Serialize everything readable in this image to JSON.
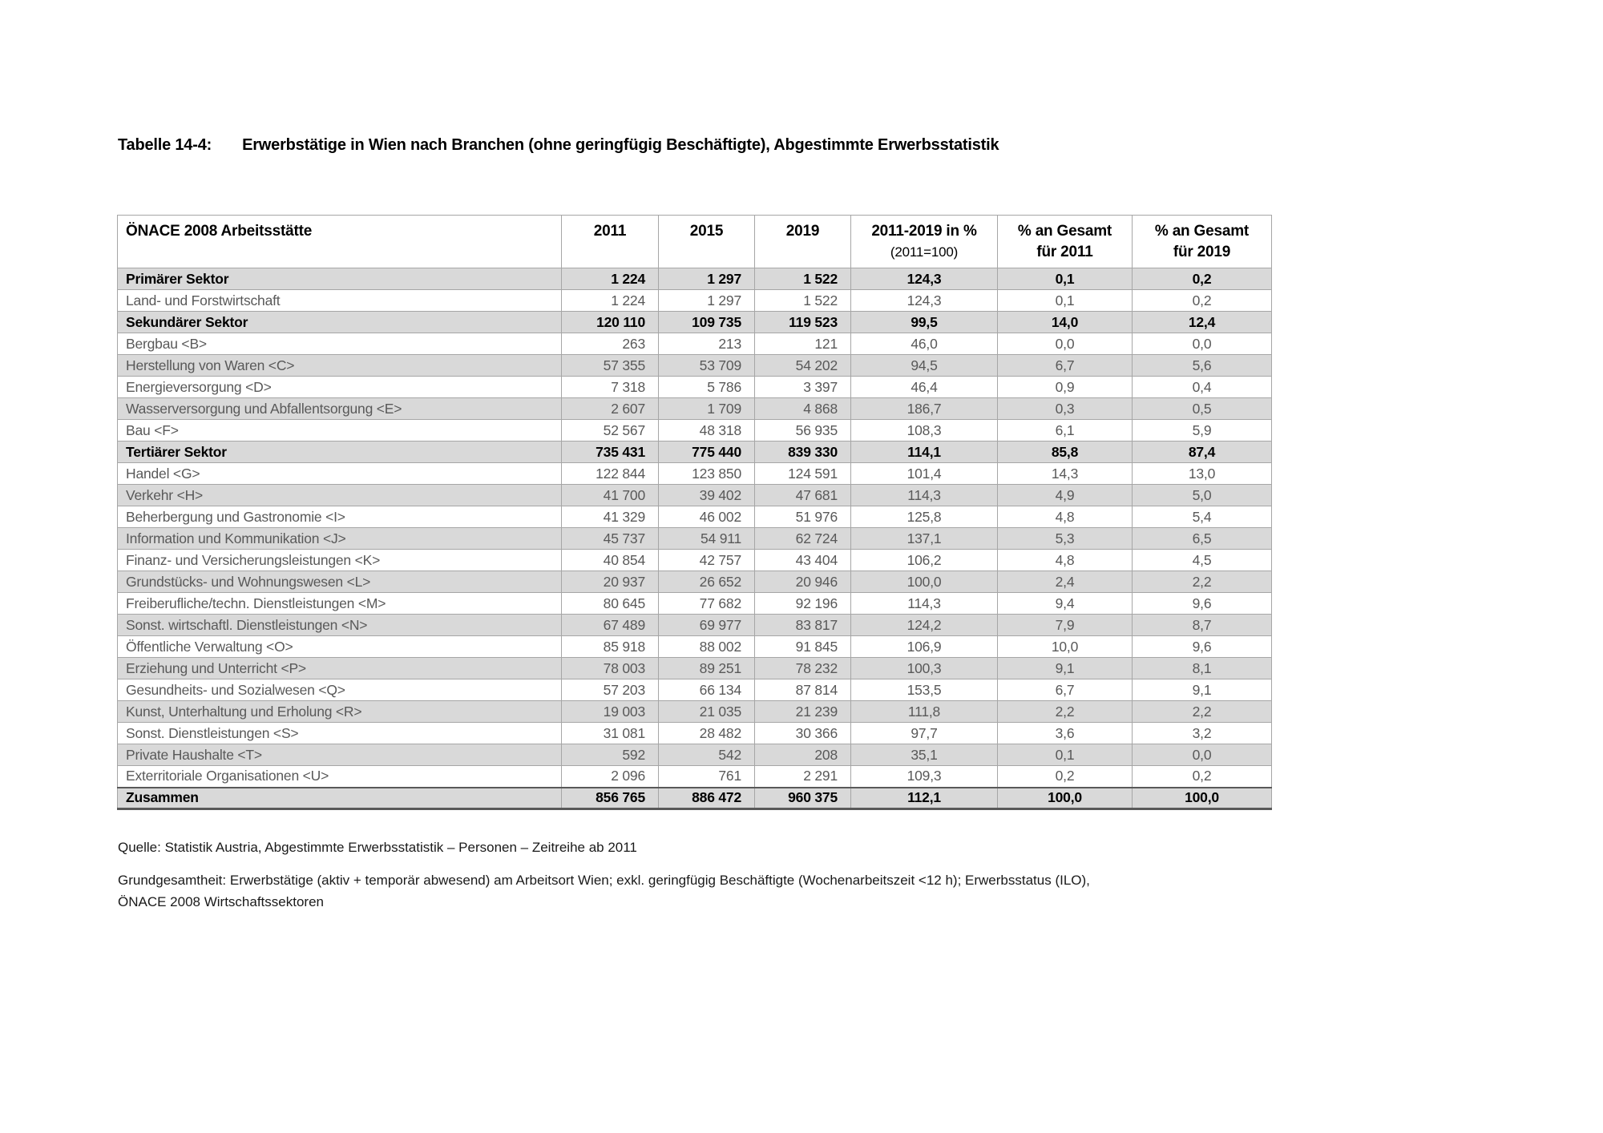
{
  "document": {
    "title": {
      "label": "Tabelle 14-4:",
      "text": "Erwerbstätige in Wien nach Branchen (ohne geringfügig Beschäftigte), Abgestimmte Erwerbsstatistik"
    },
    "source_line": "Quelle: Statistik Austria, Abgestimmte Erwerbsstatistik – Personen – Zeitreihe ab 2011",
    "note_line1": "Grundgesamtheit: Erwerbstätige (aktiv + temporär abwesend) am Arbeitsort Wien; exkl. geringfügig Beschäftigte (Wochenarbeitszeit <12 h); Erwerbsstatus (ILO),",
    "note_line2": "ÖNACE 2008 Wirtschaftssektoren"
  },
  "table": {
    "header": {
      "col_label": "ÖNACE 2008 Arbeitsstätte",
      "col_2011": "2011",
      "col_2015": "2015",
      "col_2019": "2019",
      "col_change_line1": "2011-2019 in %",
      "col_change_line2": "(2011=100)",
      "col_share2011_line1": "% an Gesamt",
      "col_share2011_line2": "für 2011",
      "col_share2019_line1": "% an Gesamt",
      "col_share2019_line2": "für 2019"
    },
    "rows": [
      {
        "label": "Primärer Sektor",
        "bold": true,
        "total": false,
        "values": [
          "1 224",
          "1 297",
          "1 522",
          "124,3",
          "0,1",
          "0,2"
        ]
      },
      {
        "label": "Land- und Forstwirtschaft",
        "bold": false,
        "total": false,
        "values": [
          "1 224",
          "1 297",
          "1 522",
          "124,3",
          "0,1",
          "0,2"
        ]
      },
      {
        "label": "Sekundärer Sektor",
        "bold": true,
        "total": false,
        "values": [
          "120 110",
          "109 735",
          "119 523",
          "99,5",
          "14,0",
          "12,4"
        ]
      },
      {
        "label": "Bergbau <B>",
        "bold": false,
        "total": false,
        "values": [
          "263",
          "213",
          "121",
          "46,0",
          "0,0",
          "0,0"
        ]
      },
      {
        "label": "Herstellung von Waren <C>",
        "bold": false,
        "total": false,
        "values": [
          "57 355",
          "53 709",
          "54 202",
          "94,5",
          "6,7",
          "5,6"
        ]
      },
      {
        "label": "Energieversorgung <D>",
        "bold": false,
        "total": false,
        "values": [
          "7 318",
          "5 786",
          "3 397",
          "46,4",
          "0,9",
          "0,4"
        ]
      },
      {
        "label": "Wasserversorgung und Abfallentsorgung <E>",
        "bold": false,
        "total": false,
        "values": [
          "2 607",
          "1 709",
          "4 868",
          "186,7",
          "0,3",
          "0,5"
        ]
      },
      {
        "label": "Bau <F>",
        "bold": false,
        "total": false,
        "values": [
          "52 567",
          "48 318",
          "56 935",
          "108,3",
          "6,1",
          "5,9"
        ]
      },
      {
        "label": "Tertiärer Sektor",
        "bold": true,
        "total": false,
        "values": [
          "735 431",
          "775 440",
          "839 330",
          "114,1",
          "85,8",
          "87,4"
        ]
      },
      {
        "label": "Handel <G>",
        "bold": false,
        "total": false,
        "values": [
          "122 844",
          "123 850",
          "124 591",
          "101,4",
          "14,3",
          "13,0"
        ]
      },
      {
        "label": "Verkehr <H>",
        "bold": false,
        "total": false,
        "values": [
          "41 700",
          "39 402",
          "47 681",
          "114,3",
          "4,9",
          "5,0"
        ]
      },
      {
        "label": "Beherbergung und Gastronomie <I>",
        "bold": false,
        "total": false,
        "values": [
          "41 329",
          "46 002",
          "51 976",
          "125,8",
          "4,8",
          "5,4"
        ]
      },
      {
        "label": "Information und Kommunikation <J>",
        "bold": false,
        "total": false,
        "values": [
          "45 737",
          "54 911",
          "62 724",
          "137,1",
          "5,3",
          "6,5"
        ]
      },
      {
        "label": "Finanz- und Versicherungsleistungen <K>",
        "bold": false,
        "total": false,
        "values": [
          "40 854",
          "42 757",
          "43 404",
          "106,2",
          "4,8",
          "4,5"
        ]
      },
      {
        "label": "Grundstücks- und Wohnungswesen <L>",
        "bold": false,
        "total": false,
        "values": [
          "20 937",
          "26 652",
          "20 946",
          "100,0",
          "2,4",
          "2,2"
        ]
      },
      {
        "label": "Freiberufliche/techn. Dienstleistungen <M>",
        "bold": false,
        "total": false,
        "values": [
          "80 645",
          "77 682",
          "92 196",
          "114,3",
          "9,4",
          "9,6"
        ]
      },
      {
        "label": "Sonst. wirtschaftl. Dienstleistungen <N>",
        "bold": false,
        "total": false,
        "values": [
          "67 489",
          "69 977",
          "83 817",
          "124,2",
          "7,9",
          "8,7"
        ]
      },
      {
        "label": "Öffentliche Verwaltung <O>",
        "bold": false,
        "total": false,
        "values": [
          "85 918",
          "88 002",
          "91 845",
          "106,9",
          "10,0",
          "9,6"
        ]
      },
      {
        "label": "Erziehung und Unterricht <P>",
        "bold": false,
        "total": false,
        "values": [
          "78 003",
          "89 251",
          "78 232",
          "100,3",
          "9,1",
          "8,1"
        ]
      },
      {
        "label": "Gesundheits- und Sozialwesen <Q>",
        "bold": false,
        "total": false,
        "values": [
          "57 203",
          "66 134",
          "87 814",
          "153,5",
          "6,7",
          "9,1"
        ]
      },
      {
        "label": "Kunst, Unterhaltung und Erholung <R>",
        "bold": false,
        "total": false,
        "values": [
          "19 003",
          "21 035",
          "21 239",
          "111,8",
          "2,2",
          "2,2"
        ]
      },
      {
        "label": "Sonst. Dienstleistungen <S>",
        "bold": false,
        "total": false,
        "values": [
          "31 081",
          "28 482",
          "30 366",
          "97,7",
          "3,6",
          "3,2"
        ]
      },
      {
        "label": "Private Haushalte <T>",
        "bold": false,
        "total": false,
        "values": [
          "592",
          "542",
          "208",
          "35,1",
          "0,1",
          "0,0"
        ]
      },
      {
        "label": "Exterritoriale Organisationen <U>",
        "bold": false,
        "total": false,
        "values": [
          "2 096",
          "761",
          "2 291",
          "109,3",
          "0,2",
          "0,2"
        ]
      },
      {
        "label": "Zusammen",
        "bold": true,
        "total": true,
        "values": [
          "856 765",
          "886 472",
          "960 375",
          "112,1",
          "100,0",
          "100,0"
        ]
      }
    ]
  },
  "colors": {
    "zebra_gray": "#d9d9d9",
    "body_text": "#595959",
    "emphasis_text": "#000000",
    "border_light": "#a6a6a6",
    "border_dark": "#595959"
  }
}
